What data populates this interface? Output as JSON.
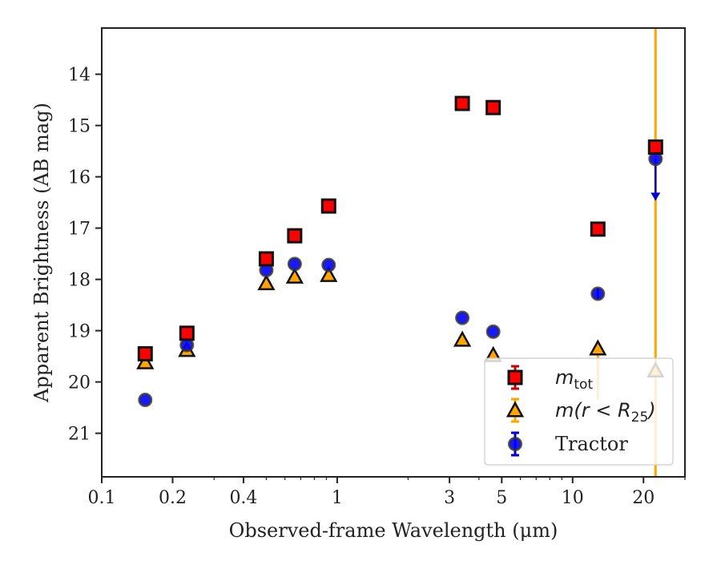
{
  "chart_data": {
    "type": "scatter",
    "title": "",
    "xlabel": "Observed-frame Wavelength (μm)",
    "ylabel": "Apparent Brightness (AB mag)",
    "xscale": "log",
    "xlim": [
      0.1,
      30
    ],
    "ylim": [
      21.85,
      13.1
    ],
    "y_inverted": true,
    "xticks": [
      {
        "value": 0.1,
        "label": "0.1"
      },
      {
        "value": 0.2,
        "label": "0.2"
      },
      {
        "value": 0.4,
        "label": "0.4"
      },
      {
        "value": 1,
        "label": "1"
      },
      {
        "value": 3,
        "label": "3"
      },
      {
        "value": 5,
        "label": "5"
      },
      {
        "value": 10,
        "label": "10"
      },
      {
        "value": 20,
        "label": "20"
      }
    ],
    "yticks": [
      {
        "value": 14,
        "label": "14"
      },
      {
        "value": 15,
        "label": "15"
      },
      {
        "value": 16,
        "label": "16"
      },
      {
        "value": 17,
        "label": "17"
      },
      {
        "value": 18,
        "label": "18"
      },
      {
        "value": 19,
        "label": "19"
      },
      {
        "value": 20,
        "label": "20"
      },
      {
        "value": 21,
        "label": "21"
      }
    ],
    "grid": false,
    "legend_position": "bottom-right",
    "series": [
      {
        "name": "m_tot",
        "marker": "square",
        "color": "#ff0000",
        "edge_color": "#111111",
        "error_color": "#cc0000",
        "points": [
          {
            "x": 0.153,
            "y": 19.45
          },
          {
            "x": 0.23,
            "y": 19.05
          },
          {
            "x": 0.5,
            "y": 17.6
          },
          {
            "x": 0.66,
            "y": 17.15
          },
          {
            "x": 0.92,
            "y": 16.57
          },
          {
            "x": 3.4,
            "y": 14.57
          },
          {
            "x": 4.6,
            "y": 14.65
          },
          {
            "x": 12.8,
            "y": 17.02
          },
          {
            "x": 22.5,
            "y": 15.42
          }
        ]
      },
      {
        "name": "m(r<R25)",
        "marker": "triangle",
        "color": "#ffa500",
        "edge_color": "#111111",
        "error_color": "#ffa500",
        "points": [
          {
            "x": 0.153,
            "y": 19.62
          },
          {
            "x": 0.23,
            "y": 19.38
          },
          {
            "x": 0.5,
            "y": 18.08
          },
          {
            "x": 0.66,
            "y": 17.95
          },
          {
            "x": 0.92,
            "y": 17.92
          },
          {
            "x": 3.4,
            "y": 19.18
          },
          {
            "x": 4.6,
            "y": 19.48
          },
          {
            "x": 12.8,
            "y": 19.35,
            "yerr_low": 19.2,
            "yerr_high": 20.35
          },
          {
            "x": 22.5,
            "y": 19.78,
            "yerr_low": 13.1,
            "yerr_high": 21.85
          }
        ]
      },
      {
        "name": "Tractor",
        "marker": "circle",
        "color": "#0000ff",
        "edge_color": "#333333",
        "error_color": "#0000cc",
        "points": [
          {
            "x": 0.153,
            "y": 20.35
          },
          {
            "x": 0.23,
            "y": 19.28
          },
          {
            "x": 0.5,
            "y": 17.82
          },
          {
            "x": 0.66,
            "y": 17.7
          },
          {
            "x": 0.92,
            "y": 17.72
          },
          {
            "x": 3.4,
            "y": 18.75
          },
          {
            "x": 4.6,
            "y": 19.02
          },
          {
            "x": 12.8,
            "y": 18.28,
            "yerr_low": 18.18,
            "yerr_high": 18.38
          },
          {
            "x": 22.5,
            "y": 15.65,
            "upper_limit_to": 16.45
          }
        ]
      }
    ],
    "legend": [
      {
        "series": "m_tot",
        "label_main": "m",
        "label_sub": "tot"
      },
      {
        "series": "m(r<R25)",
        "label_main": "m(r < R",
        "label_sub": "25",
        "label_tail": ")"
      },
      {
        "series": "Tractor",
        "label_main": "Tractor"
      }
    ]
  }
}
